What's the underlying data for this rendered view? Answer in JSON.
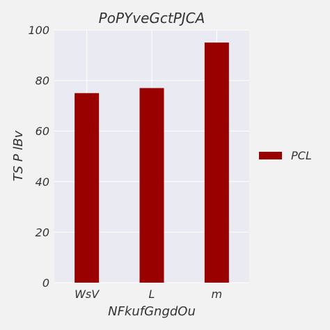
{
  "chart_data": {
    "type": "bar",
    "title": "PoPYveGctPJCA",
    "xlabel": "NFkufGngdOu",
    "ylabel": "TS P lBv",
    "categories": [
      "WsV",
      "L",
      "m"
    ],
    "series": [
      {
        "name": "PCL",
        "values": [
          75,
          77,
          95
        ],
        "color": "#990000"
      }
    ],
    "ylim": [
      0,
      100
    ],
    "yticks": [
      0,
      20,
      40,
      60,
      80,
      100
    ],
    "grid": true,
    "legend": "right",
    "colors": {
      "plot_background": "#eaeaf2",
      "page_background": "#f2f2f2",
      "grid": "#ffffff"
    }
  }
}
